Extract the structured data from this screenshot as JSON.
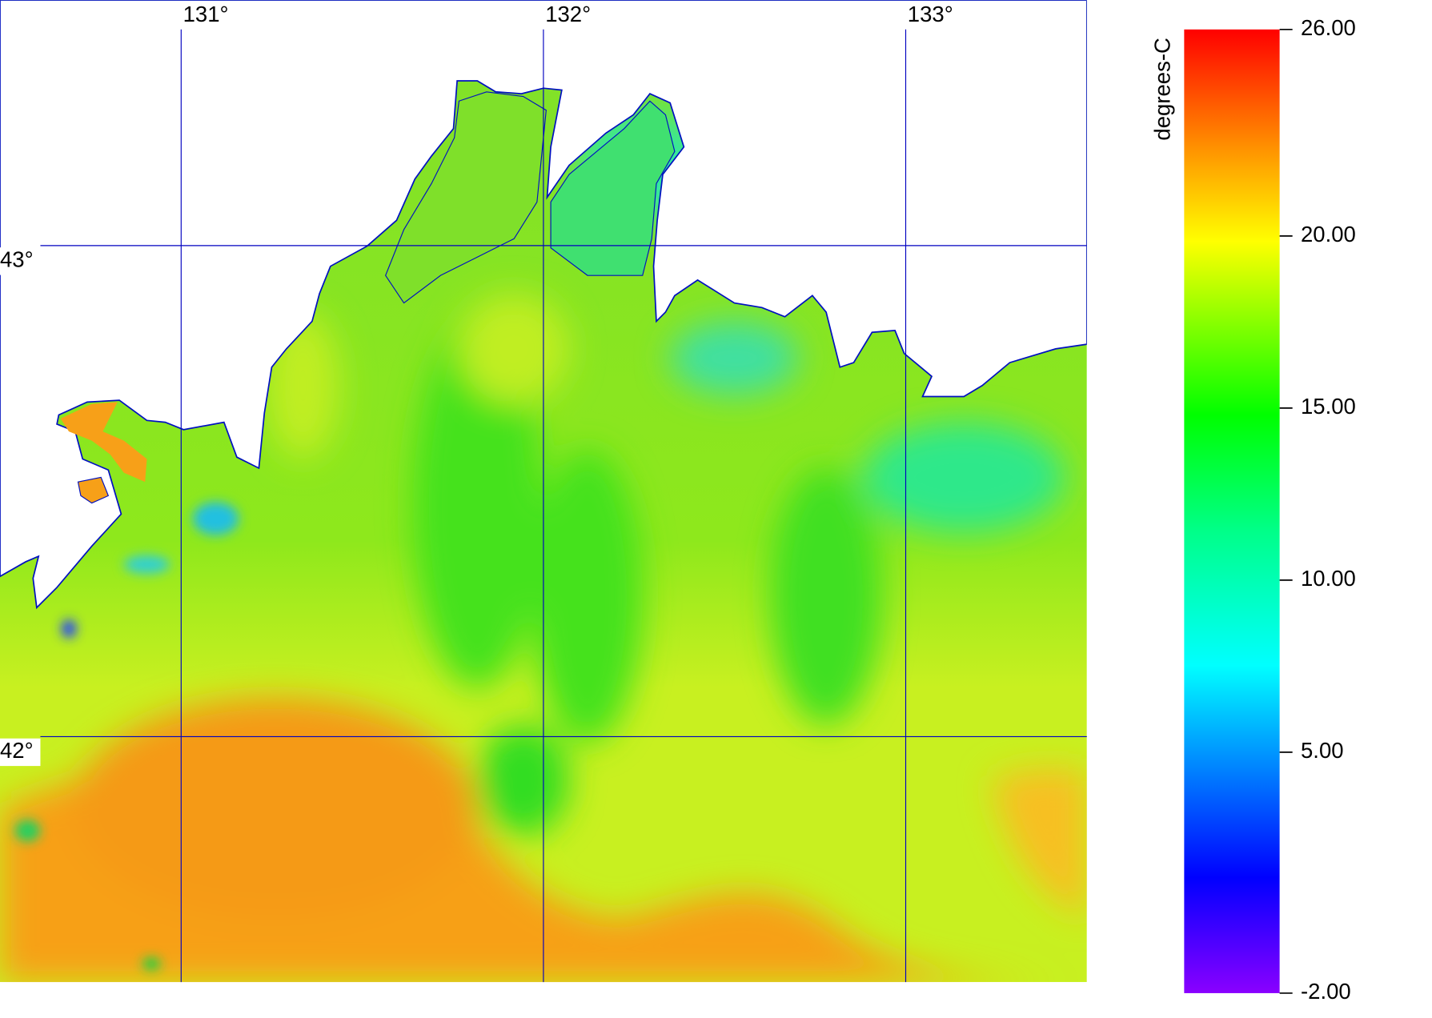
{
  "map": {
    "xlim": [
      130.5,
      133.5
    ],
    "ylim": [
      41.5,
      43.5
    ],
    "lon_lines": [
      {
        "value": 131,
        "label": "131°"
      },
      {
        "value": 132,
        "label": "132°"
      },
      {
        "value": 133,
        "label": "133°"
      }
    ],
    "lat_lines": [
      {
        "value": 43,
        "label": "43°"
      },
      {
        "value": 42,
        "label": "42°"
      }
    ],
    "grid_color": "#0000c0",
    "colorbar": {
      "title": "degrees-C",
      "range": [
        -2,
        26
      ],
      "ticks": [
        {
          "value": 26,
          "label": "26.00"
        },
        {
          "value": 20,
          "label": "20.00"
        },
        {
          "value": 15,
          "label": "15.00"
        },
        {
          "value": 10,
          "label": "10.00"
        },
        {
          "value": 5,
          "label": "5.00"
        },
        {
          "value": -2,
          "label": "-2.00"
        }
      ]
    }
  }
}
